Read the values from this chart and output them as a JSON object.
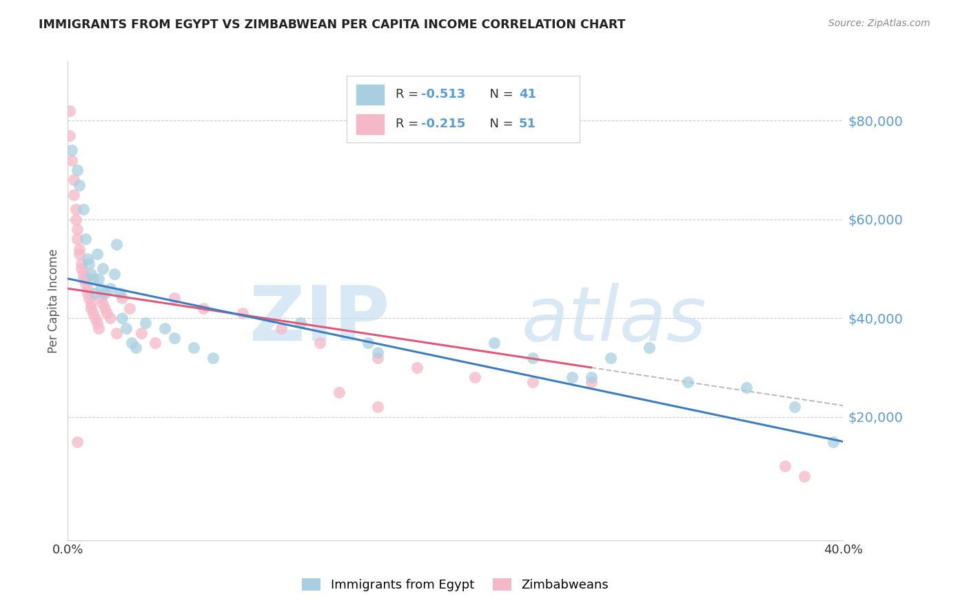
{
  "title": "IMMIGRANTS FROM EGYPT VS ZIMBABWEAN PER CAPITA INCOME CORRELATION CHART",
  "source": "Source: ZipAtlas.com",
  "ylabel": "Per Capita Income",
  "xlim": [
    0.0,
    0.4
  ],
  "ylim": [
    -5000,
    92000
  ],
  "ytick_vals": [
    20000,
    40000,
    60000,
    80000
  ],
  "ytick_labels": [
    "$20,000",
    "$40,000",
    "$60,000",
    "$80,000"
  ],
  "xtick_vals": [
    0.0,
    0.05,
    0.1,
    0.15,
    0.2,
    0.25,
    0.3,
    0.35,
    0.4
  ],
  "xtick_labels": [
    "0.0%",
    "",
    "",
    "",
    "",
    "",
    "",
    "",
    "40.0%"
  ],
  "R1": "-0.513",
  "N1": "41",
  "R2": "-0.215",
  "N2": "51",
  "blue_scatter_color": "#a8cfe0",
  "pink_scatter_color": "#f5b8c8",
  "blue_line_color": "#3b7ec0",
  "pink_line_color": "#e05878",
  "grid_color": "#cccccc",
  "legend1_label": "Immigrants from Egypt",
  "legend2_label": "Zimbabweans",
  "blue_line_x0": 0.0,
  "blue_line_y0": 48000,
  "blue_line_x1": 0.4,
  "blue_line_y1": 15000,
  "pink_line_x0": 0.0,
  "pink_line_y0": 46000,
  "pink_line_x1": 0.27,
  "pink_line_y1": 30000,
  "egypt_x": [
    0.002,
    0.005,
    0.006,
    0.008,
    0.009,
    0.01,
    0.011,
    0.012,
    0.013,
    0.014,
    0.015,
    0.016,
    0.017,
    0.018,
    0.019,
    0.022,
    0.024,
    0.025,
    0.027,
    0.028,
    0.03,
    0.033,
    0.035,
    0.04,
    0.05,
    0.055,
    0.065,
    0.075,
    0.12,
    0.155,
    0.16,
    0.22,
    0.24,
    0.26,
    0.27,
    0.28,
    0.3,
    0.32,
    0.35,
    0.375,
    0.395
  ],
  "egypt_y": [
    74000,
    70000,
    67000,
    62000,
    56000,
    52000,
    51000,
    49000,
    48000,
    45000,
    53000,
    48000,
    46000,
    50000,
    45000,
    46000,
    49000,
    55000,
    45000,
    40000,
    38000,
    35000,
    34000,
    39000,
    38000,
    36000,
    34000,
    32000,
    39000,
    35000,
    33000,
    35000,
    32000,
    28000,
    28000,
    32000,
    34000,
    27000,
    26000,
    22000,
    15000
  ],
  "zimbabwe_x": [
    0.001,
    0.001,
    0.002,
    0.003,
    0.003,
    0.004,
    0.004,
    0.005,
    0.005,
    0.006,
    0.006,
    0.007,
    0.007,
    0.008,
    0.008,
    0.009,
    0.009,
    0.01,
    0.01,
    0.011,
    0.012,
    0.012,
    0.013,
    0.014,
    0.015,
    0.016,
    0.017,
    0.018,
    0.019,
    0.02,
    0.022,
    0.025,
    0.028,
    0.032,
    0.038,
    0.045,
    0.055,
    0.07,
    0.09,
    0.11,
    0.13,
    0.16,
    0.18,
    0.21,
    0.24,
    0.27,
    0.14,
    0.16,
    0.005,
    0.37,
    0.38
  ],
  "zimbabwe_y": [
    82000,
    77000,
    72000,
    68000,
    65000,
    62000,
    60000,
    58000,
    56000,
    54000,
    53000,
    51000,
    50000,
    49000,
    48000,
    48000,
    47000,
    46000,
    45000,
    44000,
    43000,
    42000,
    41000,
    40000,
    39000,
    38000,
    44000,
    43000,
    42000,
    41000,
    40000,
    37000,
    44000,
    42000,
    37000,
    35000,
    44000,
    42000,
    41000,
    38000,
    35000,
    32000,
    30000,
    28000,
    27000,
    27000,
    25000,
    22000,
    15000,
    10000,
    8000
  ]
}
